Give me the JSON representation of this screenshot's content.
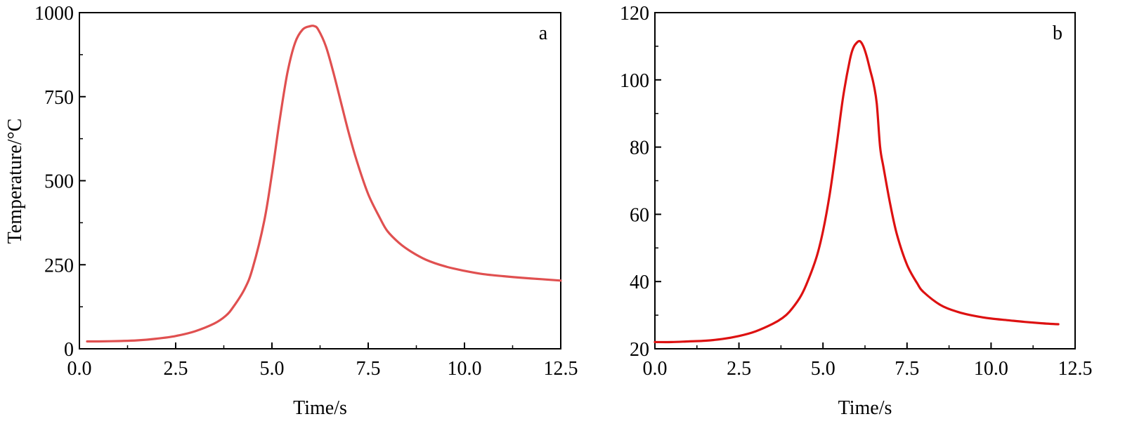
{
  "chart_data": [
    {
      "type": "line",
      "panel_label": "a",
      "xlabel": "Time/s",
      "ylabel": "Temperature/°C",
      "xlim": [
        0,
        12.5
      ],
      "ylim": [
        0,
        1000
      ],
      "xticks": [
        "0.0",
        "2.5",
        "5.0",
        "7.5",
        "10.0",
        "12.5"
      ],
      "yticks": [
        "0",
        "250",
        "500",
        "750",
        "1000"
      ],
      "series": [
        {
          "color": "#e05050",
          "x": [
            0.2,
            0.5,
            1.0,
            1.5,
            2.0,
            2.5,
            3.0,
            3.5,
            3.8,
            4.0,
            4.3,
            4.5,
            4.8,
            5.0,
            5.2,
            5.4,
            5.6,
            5.8,
            6.0,
            6.1,
            6.2,
            6.4,
            6.6,
            6.8,
            7.0,
            7.2,
            7.5,
            7.8,
            8.0,
            8.3,
            8.6,
            9.0,
            9.5,
            10.0,
            10.5,
            11.0,
            11.5,
            12.0,
            12.5
          ],
          "y": [
            22,
            22,
            23,
            25,
            30,
            38,
            52,
            75,
            98,
            125,
            180,
            240,
            380,
            520,
            680,
            820,
            910,
            950,
            960,
            960,
            950,
            900,
            820,
            730,
            640,
            560,
            460,
            390,
            350,
            315,
            290,
            265,
            245,
            232,
            222,
            216,
            211,
            207,
            203
          ]
        }
      ]
    },
    {
      "type": "line",
      "panel_label": "b",
      "xlabel": "Time/s",
      "ylabel": "",
      "xlim": [
        0,
        12.5
      ],
      "ylim": [
        20,
        120
      ],
      "xticks": [
        "0.0",
        "2.5",
        "5.0",
        "7.5",
        "10.0",
        "12.5"
      ],
      "yticks": [
        "20",
        "40",
        "60",
        "80",
        "100",
        "120"
      ],
      "series": [
        {
          "color": "#dd1111",
          "x": [
            0.0,
            0.5,
            1.0,
            1.5,
            2.0,
            2.5,
            3.0,
            3.5,
            3.8,
            4.0,
            4.3,
            4.5,
            4.8,
            5.0,
            5.2,
            5.4,
            5.6,
            5.8,
            5.9,
            6.0,
            6.1,
            6.2,
            6.3,
            6.4,
            6.5,
            6.6,
            6.7,
            6.8,
            7.0,
            7.2,
            7.5,
            7.8,
            8.0,
            8.5,
            9.0,
            9.5,
            10.0,
            10.5,
            11.0,
            11.5,
            12.0
          ],
          "y": [
            22,
            22,
            22.2,
            22.4,
            22.9,
            23.8,
            25.2,
            27.4,
            29.2,
            31,
            35,
            39,
            47,
            55,
            66,
            80,
            95,
            106,
            109.5,
            111,
            111.5,
            110,
            107,
            103,
            99,
            93,
            80,
            74,
            63,
            54,
            45,
            39.5,
            36.8,
            33,
            31,
            29.8,
            29,
            28.5,
            28,
            27.6,
            27.3
          ]
        }
      ]
    }
  ]
}
